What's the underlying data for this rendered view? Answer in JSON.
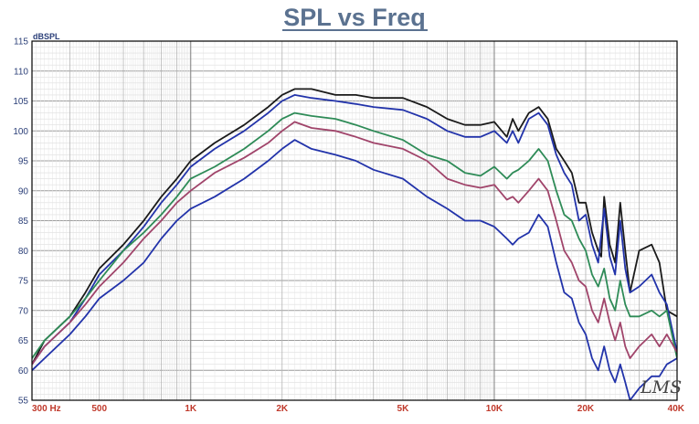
{
  "chart_data": {
    "type": "line",
    "title": "SPL vs Freq",
    "ylabel": "dBSPL",
    "xlabel": "",
    "x_scale": "log",
    "xlim": [
      300,
      40000
    ],
    "ylim": [
      55,
      115
    ],
    "grid": true,
    "yticks": [
      55,
      60,
      65,
      70,
      75,
      80,
      85,
      90,
      95,
      100,
      105,
      110,
      115
    ],
    "xticks": [
      {
        "value": 300,
        "label": "300  Hz"
      },
      {
        "value": 500,
        "label": "500"
      },
      {
        "value": 1000,
        "label": "1K"
      },
      {
        "value": 2000,
        "label": "2K"
      },
      {
        "value": 5000,
        "label": "5K"
      },
      {
        "value": 10000,
        "label": "10K"
      },
      {
        "value": 20000,
        "label": "20K"
      },
      {
        "value": 40000,
        "label": "40K"
      }
    ],
    "series": [
      {
        "color": "#1a1a1a",
        "points": [
          [
            300,
            61
          ],
          [
            330,
            65
          ],
          [
            400,
            69
          ],
          [
            450,
            73
          ],
          [
            500,
            77
          ],
          [
            600,
            81
          ],
          [
            700,
            85
          ],
          [
            800,
            89
          ],
          [
            900,
            92
          ],
          [
            1000,
            95
          ],
          [
            1200,
            98
          ],
          [
            1500,
            101
          ],
          [
            1800,
            104
          ],
          [
            2000,
            106
          ],
          [
            2200,
            107
          ],
          [
            2500,
            107
          ],
          [
            3000,
            106
          ],
          [
            3500,
            106
          ],
          [
            4000,
            105.5
          ],
          [
            5000,
            105.5
          ],
          [
            6000,
            104
          ],
          [
            7000,
            102
          ],
          [
            8000,
            101
          ],
          [
            9000,
            101
          ],
          [
            10000,
            101.5
          ],
          [
            11000,
            99
          ],
          [
            11500,
            102
          ],
          [
            12000,
            100
          ],
          [
            13000,
            103
          ],
          [
            14000,
            104
          ],
          [
            15000,
            102
          ],
          [
            16000,
            97
          ],
          [
            17000,
            95
          ],
          [
            18000,
            93
          ],
          [
            19000,
            88
          ],
          [
            20000,
            88
          ],
          [
            21000,
            83
          ],
          [
            22000,
            80
          ],
          [
            22500,
            79
          ],
          [
            23000,
            89
          ],
          [
            24000,
            81
          ],
          [
            25000,
            78
          ],
          [
            26000,
            88
          ],
          [
            27000,
            80
          ],
          [
            28000,
            73
          ],
          [
            30000,
            80
          ],
          [
            33000,
            81
          ],
          [
            35000,
            78
          ],
          [
            37000,
            70
          ],
          [
            40000,
            69
          ]
        ]
      },
      {
        "color": "#2233aa",
        "points": [
          [
            300,
            61
          ],
          [
            330,
            64
          ],
          [
            400,
            68
          ],
          [
            450,
            72
          ],
          [
            500,
            76
          ],
          [
            600,
            80
          ],
          [
            700,
            84
          ],
          [
            800,
            88
          ],
          [
            900,
            91
          ],
          [
            1000,
            94
          ],
          [
            1200,
            97
          ],
          [
            1500,
            100
          ],
          [
            1800,
            103
          ],
          [
            2000,
            105
          ],
          [
            2200,
            106
          ],
          [
            2500,
            105.5
          ],
          [
            3000,
            105
          ],
          [
            3500,
            104.5
          ],
          [
            4000,
            104
          ],
          [
            5000,
            103.5
          ],
          [
            6000,
            102
          ],
          [
            7000,
            100
          ],
          [
            8000,
            99
          ],
          [
            9000,
            99
          ],
          [
            10000,
            100
          ],
          [
            11000,
            98
          ],
          [
            11500,
            100
          ],
          [
            12000,
            98
          ],
          [
            13000,
            102
          ],
          [
            14000,
            103
          ],
          [
            15000,
            101
          ],
          [
            16000,
            96
          ],
          [
            17000,
            93
          ],
          [
            18000,
            91
          ],
          [
            19000,
            85
          ],
          [
            20000,
            86
          ],
          [
            21000,
            81
          ],
          [
            22000,
            78
          ],
          [
            23000,
            87
          ],
          [
            24000,
            79
          ],
          [
            25000,
            76
          ],
          [
            26000,
            85
          ],
          [
            27000,
            77
          ],
          [
            28000,
            73
          ],
          [
            30000,
            74
          ],
          [
            33000,
            76
          ],
          [
            35000,
            73
          ],
          [
            37000,
            71
          ],
          [
            40000,
            63
          ]
        ]
      },
      {
        "color": "#2e8b57",
        "points": [
          [
            300,
            62
          ],
          [
            330,
            65
          ],
          [
            400,
            69
          ],
          [
            450,
            72
          ],
          [
            500,
            75
          ],
          [
            600,
            80
          ],
          [
            700,
            83
          ],
          [
            800,
            86
          ],
          [
            900,
            89
          ],
          [
            1000,
            92
          ],
          [
            1200,
            94
          ],
          [
            1500,
            97
          ],
          [
            1800,
            100
          ],
          [
            2000,
            102
          ],
          [
            2200,
            103
          ],
          [
            2500,
            102.5
          ],
          [
            3000,
            102
          ],
          [
            3500,
            101
          ],
          [
            4000,
            100
          ],
          [
            5000,
            98.5
          ],
          [
            6000,
            96
          ],
          [
            7000,
            95
          ],
          [
            8000,
            93
          ],
          [
            9000,
            92.5
          ],
          [
            10000,
            94
          ],
          [
            11000,
            92
          ],
          [
            11500,
            93
          ],
          [
            12000,
            93.5
          ],
          [
            13000,
            95
          ],
          [
            14000,
            97
          ],
          [
            15000,
            95
          ],
          [
            16000,
            90
          ],
          [
            17000,
            86
          ],
          [
            18000,
            85
          ],
          [
            19000,
            82
          ],
          [
            20000,
            80
          ],
          [
            21000,
            76
          ],
          [
            22000,
            74
          ],
          [
            23000,
            77
          ],
          [
            24000,
            72
          ],
          [
            25000,
            70
          ],
          [
            26000,
            75
          ],
          [
            27000,
            71
          ],
          [
            28000,
            69
          ],
          [
            30000,
            69
          ],
          [
            33000,
            70
          ],
          [
            35000,
            69
          ],
          [
            37000,
            70
          ],
          [
            40000,
            62
          ]
        ]
      },
      {
        "color": "#a0446a",
        "points": [
          [
            300,
            61
          ],
          [
            330,
            64
          ],
          [
            400,
            68
          ],
          [
            450,
            71
          ],
          [
            500,
            74
          ],
          [
            600,
            78
          ],
          [
            700,
            82
          ],
          [
            800,
            85
          ],
          [
            900,
            88
          ],
          [
            1000,
            90
          ],
          [
            1200,
            93
          ],
          [
            1500,
            95.5
          ],
          [
            1800,
            98
          ],
          [
            2000,
            100
          ],
          [
            2200,
            101.5
          ],
          [
            2500,
            100.5
          ],
          [
            3000,
            100
          ],
          [
            3500,
            99
          ],
          [
            4000,
            98
          ],
          [
            5000,
            97
          ],
          [
            6000,
            95
          ],
          [
            7000,
            92
          ],
          [
            8000,
            91
          ],
          [
            9000,
            90.5
          ],
          [
            10000,
            91
          ],
          [
            11000,
            88.5
          ],
          [
            11500,
            89
          ],
          [
            12000,
            88
          ],
          [
            13000,
            90
          ],
          [
            14000,
            92
          ],
          [
            15000,
            90
          ],
          [
            16000,
            85
          ],
          [
            17000,
            80
          ],
          [
            18000,
            78
          ],
          [
            19000,
            75
          ],
          [
            20000,
            74
          ],
          [
            21000,
            70
          ],
          [
            22000,
            68
          ],
          [
            23000,
            72
          ],
          [
            24000,
            68
          ],
          [
            25000,
            65
          ],
          [
            26000,
            68
          ],
          [
            27000,
            64
          ],
          [
            28000,
            62
          ],
          [
            30000,
            64
          ],
          [
            33000,
            66
          ],
          [
            35000,
            64
          ],
          [
            37000,
            66
          ],
          [
            40000,
            63
          ]
        ]
      },
      {
        "color": "#2233aa",
        "points": [
          [
            300,
            60
          ],
          [
            330,
            62
          ],
          [
            400,
            66
          ],
          [
            450,
            69
          ],
          [
            500,
            72
          ],
          [
            600,
            75
          ],
          [
            700,
            78
          ],
          [
            800,
            82
          ],
          [
            900,
            85
          ],
          [
            1000,
            87
          ],
          [
            1200,
            89
          ],
          [
            1500,
            92
          ],
          [
            1800,
            95
          ],
          [
            2000,
            97
          ],
          [
            2200,
            98.5
          ],
          [
            2500,
            97
          ],
          [
            3000,
            96
          ],
          [
            3500,
            95
          ],
          [
            4000,
            93.5
          ],
          [
            5000,
            92
          ],
          [
            6000,
            89
          ],
          [
            7000,
            87
          ],
          [
            8000,
            85
          ],
          [
            9000,
            85
          ],
          [
            10000,
            84
          ],
          [
            11000,
            82
          ],
          [
            11500,
            81
          ],
          [
            12000,
            82
          ],
          [
            13000,
            83
          ],
          [
            14000,
            86
          ],
          [
            15000,
            84
          ],
          [
            16000,
            78
          ],
          [
            17000,
            73
          ],
          [
            18000,
            72
          ],
          [
            19000,
            68
          ],
          [
            20000,
            66
          ],
          [
            21000,
            62
          ],
          [
            22000,
            60
          ],
          [
            23000,
            64
          ],
          [
            24000,
            60
          ],
          [
            25000,
            58
          ],
          [
            26000,
            61
          ],
          [
            27000,
            58
          ],
          [
            28000,
            55
          ],
          [
            30000,
            57
          ],
          [
            33000,
            59
          ],
          [
            35000,
            59
          ],
          [
            37000,
            61
          ],
          [
            40000,
            62
          ]
        ]
      }
    ]
  },
  "logo": {
    "text": "LMS"
  }
}
